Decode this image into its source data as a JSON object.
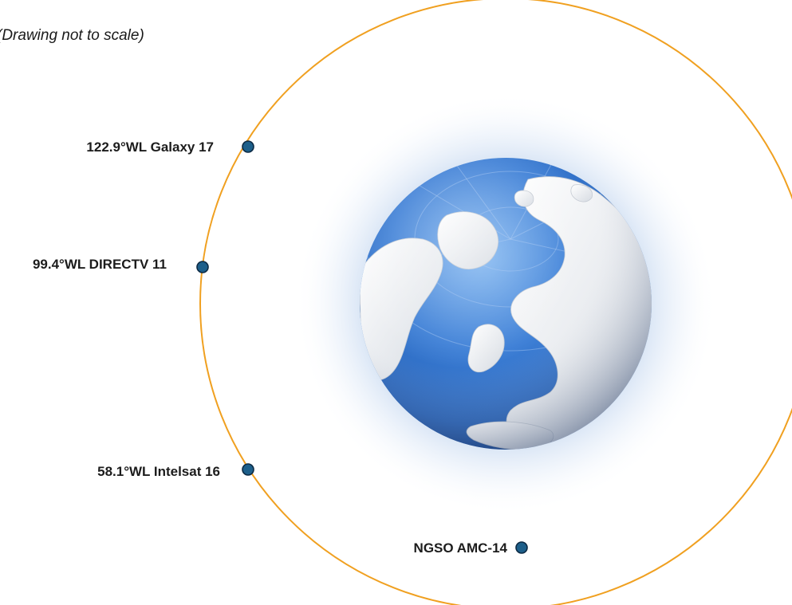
{
  "diagram": {
    "note": "(Drawing not to scale)",
    "orbit_color": "#f0a020",
    "satellite_color": "#1d5f8a",
    "satellites": [
      {
        "label": "122.9°WL Galaxy 17"
      },
      {
        "label": "99.4°WL DIRECTV 11"
      },
      {
        "label": "58.1°WL Intelsat 16"
      },
      {
        "label": "NGSO AMC-14"
      }
    ]
  }
}
